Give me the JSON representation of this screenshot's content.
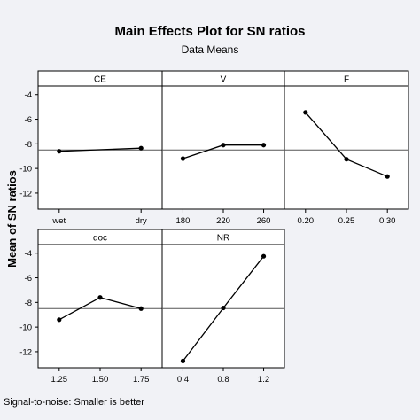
{
  "chart_data": {
    "type": "line",
    "title": "Main Effects Plot for SN ratios",
    "subtitle": "Data Means",
    "ylabel": "Mean of SN ratios",
    "footnote": "Signal-to-noise: Smaller is better",
    "ylim": [
      -13.3,
      -3.3
    ],
    "yticks": [
      -12,
      -10,
      -8,
      -6,
      -4
    ],
    "ytick_labels": [
      "-12",
      "-10",
      "-8",
      "-6",
      "-4"
    ],
    "reference_line": -8.5,
    "line_color": "#000000",
    "grid": false,
    "panels": [
      {
        "name": "CE",
        "categories": [
          "wet",
          "dry"
        ],
        "values": [
          -8.6,
          -8.35
        ]
      },
      {
        "name": "V",
        "categories": [
          "180",
          "220",
          "260"
        ],
        "values": [
          -9.2,
          -8.1,
          -8.1
        ]
      },
      {
        "name": "F",
        "categories": [
          "0.20",
          "0.25",
          "0.30"
        ],
        "values": [
          -5.45,
          -9.25,
          -10.65
        ]
      },
      {
        "name": "doc",
        "categories": [
          "1.25",
          "1.50",
          "1.75"
        ],
        "values": [
          -9.4,
          -7.6,
          -8.5
        ]
      },
      {
        "name": "NR",
        "categories": [
          "0.4",
          "0.8",
          "1.2"
        ],
        "values": [
          -12.75,
          -8.45,
          -4.25
        ]
      }
    ]
  }
}
